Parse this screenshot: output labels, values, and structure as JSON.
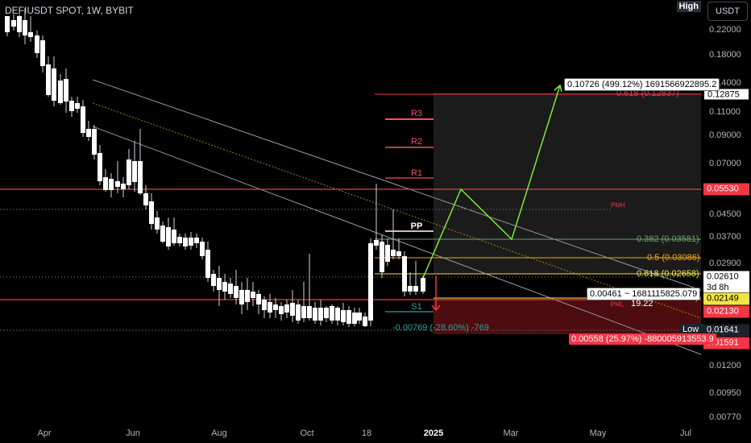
{
  "header": {
    "symbol": "DEFIUSDT SPOT, 1W, BYBIT",
    "high_badge": "High",
    "currency": "USDT"
  },
  "price_axis": {
    "ticks": [
      "0.22000",
      "0.18000",
      "0.14000",
      "0.11000",
      "0.09000",
      "0.07000",
      "0.04500",
      "0.03700",
      "0.02900",
      "0.01200",
      "0.00950",
      "0.00770"
    ],
    "tags": {
      "target": "0.12875",
      "resistance": "0.05530",
      "current": "0.02610",
      "countdown": "3d 8h",
      "entry": "0.02149",
      "support": "0.02130",
      "low": "0.01641",
      "stop": "0.01591"
    },
    "low_label": "Low"
  },
  "time_axis": {
    "labels": [
      "Apr",
      "Jun",
      "Aug",
      "Oct",
      "18",
      "2025",
      "Mar",
      "May",
      "Jul"
    ]
  },
  "pivots": {
    "r3": "R3",
    "r2": "R2",
    "r1": "R1",
    "pp": "PP",
    "s1": "S1",
    "pmh": "PMH",
    "pml": "PML"
  },
  "fib_levels": {
    "f0618_top": "0.618 (0.12837)",
    "f0382": "0.382 (0.03581)",
    "f05": "0.5 (0.03086)",
    "f0618": "0.618 (0.02658)",
    "f_partial": "5)"
  },
  "position": {
    "target_label": "0.10726 (499.12%) 1691566922895.2",
    "entry_label": "0.00461 ~ 1681115825.079",
    "ratio_label": "19.22",
    "stop_label": "0.00558 (25.97%) -880005913553.9",
    "measure_label": "-0.00769 (-28.60%) -769"
  },
  "colors": {
    "up": "#ffffff",
    "down": "#ffffff",
    "resistance": "#f23645",
    "support_teal": "#26a69a",
    "fib_orange": "#f7a600",
    "projection": "#7ee83a"
  }
}
